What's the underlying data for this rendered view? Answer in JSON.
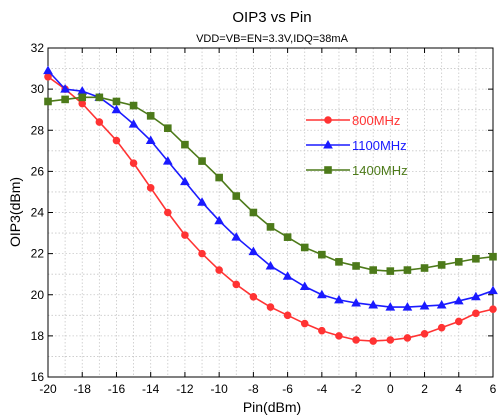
{
  "chart_data": {
    "type": "line",
    "title": "OIP3 vs Pin",
    "subtitle": "VDD=VB=EN=3.3V,IDQ=38mA",
    "xlabel": "Pin(dBm)",
    "ylabel": "OIP3(dBm)",
    "xlim": [
      -20,
      6
    ],
    "ylim": [
      16,
      32
    ],
    "xticks": [
      -20,
      -18,
      -16,
      -14,
      -12,
      -10,
      -8,
      -6,
      -4,
      -2,
      0,
      2,
      4,
      6
    ],
    "yticks": [
      16,
      18,
      20,
      22,
      24,
      26,
      28,
      30,
      32
    ],
    "grid": true,
    "legend_position": "center-right",
    "x": [
      -20,
      -19,
      -18,
      -17,
      -16,
      -15,
      -14,
      -13,
      -12,
      -11,
      -10,
      -9,
      -8,
      -7,
      -6,
      -5,
      -4,
      -3,
      -2,
      -1,
      0,
      1,
      2,
      3,
      4,
      5,
      6
    ],
    "series": [
      {
        "name": "800MHz",
        "color": "#ff3333",
        "marker": "circle",
        "values": [
          30.6,
          30.0,
          29.3,
          28.4,
          27.5,
          26.4,
          25.2,
          24.0,
          22.9,
          22.0,
          21.2,
          20.5,
          19.9,
          19.4,
          19.0,
          18.6,
          18.25,
          18.0,
          17.8,
          17.75,
          17.8,
          17.9,
          18.1,
          18.4,
          18.7,
          19.1,
          19.3
        ]
      },
      {
        "name": "1100MHz",
        "color": "#1a1aff",
        "marker": "triangle",
        "values": [
          30.9,
          30.0,
          29.9,
          29.6,
          29.0,
          28.3,
          27.5,
          26.5,
          25.5,
          24.5,
          23.6,
          22.8,
          22.1,
          21.4,
          20.9,
          20.4,
          20.0,
          19.75,
          19.6,
          19.5,
          19.4,
          19.4,
          19.45,
          19.5,
          19.7,
          19.9,
          20.2
        ]
      },
      {
        "name": "1400MHz",
        "color": "#4d7a1a",
        "marker": "square",
        "values": [
          29.4,
          29.5,
          29.6,
          29.6,
          29.4,
          29.2,
          28.7,
          28.1,
          27.3,
          26.5,
          25.7,
          24.8,
          24.0,
          23.3,
          22.8,
          22.3,
          21.95,
          21.6,
          21.4,
          21.2,
          21.15,
          21.2,
          21.3,
          21.45,
          21.6,
          21.75,
          21.85
        ]
      }
    ]
  }
}
